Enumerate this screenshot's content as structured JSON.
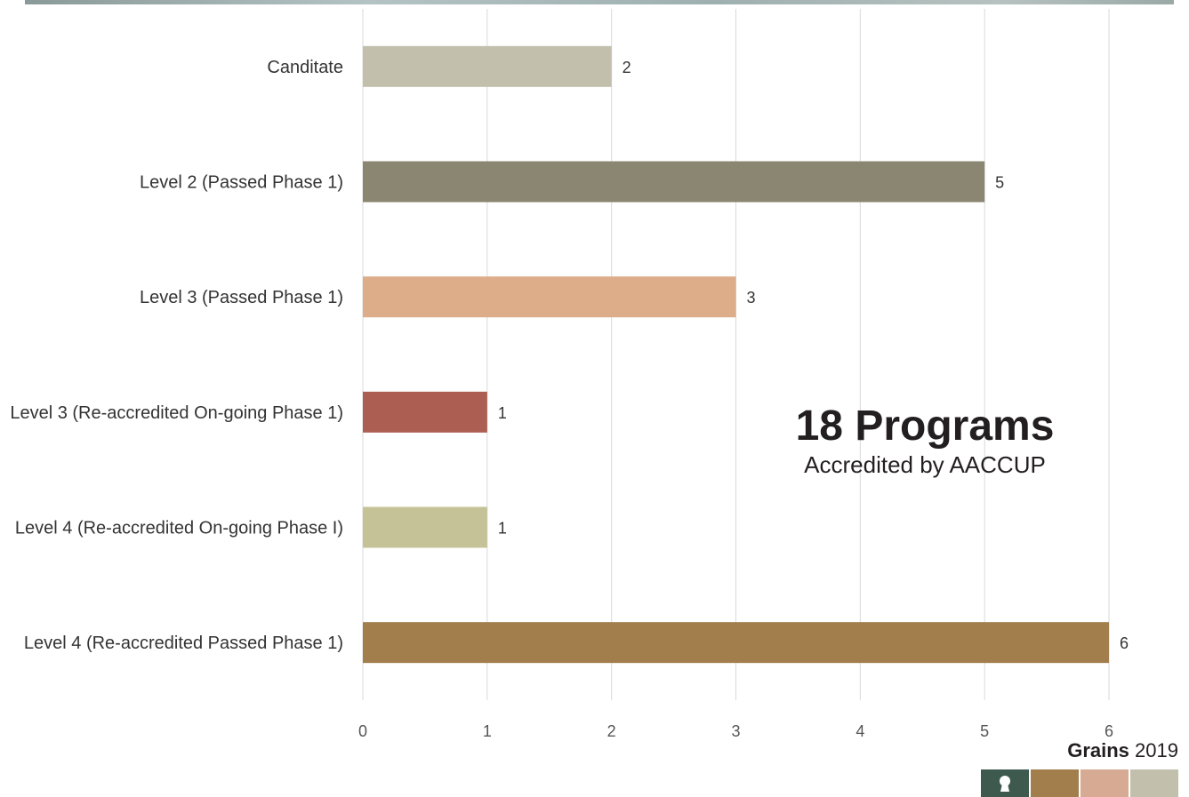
{
  "chart_data": {
    "type": "bar",
    "orientation": "horizontal",
    "categories": [
      "Canditate",
      "Level 2 (Passed Phase 1)",
      "Level 3 (Passed Phase 1)",
      "Level 3 (Re-accredited On-going Phase 1)",
      "Level 4 (Re-accredited On-going Phase I)",
      "Level 4 (Re-accredited Passed Phase 1)"
    ],
    "values": [
      2,
      5,
      3,
      1,
      1,
      6
    ],
    "value_labels": [
      "2",
      "5",
      "3",
      "1",
      "1",
      "6"
    ],
    "bar_colors": [
      "#c2c0ad",
      "#8a8671",
      "#dcad88",
      "#ad5e52",
      "#c4c296",
      "#a37e4d"
    ],
    "xlim": [
      0,
      6
    ],
    "x_ticks": [
      "0",
      "1",
      "2",
      "3",
      "4",
      "5",
      "6"
    ],
    "grid": true,
    "legend": "none"
  },
  "summary": {
    "title": "18 Programs",
    "subtitle": "Accredited by AACCUP"
  },
  "brand": {
    "name": "Grains",
    "year": "2019",
    "swatch_colors": [
      "#3e5a4f",
      "#a37e4d",
      "#d6aa93",
      "#c2c0ad"
    ],
    "icon": "keyhole-icon"
  }
}
